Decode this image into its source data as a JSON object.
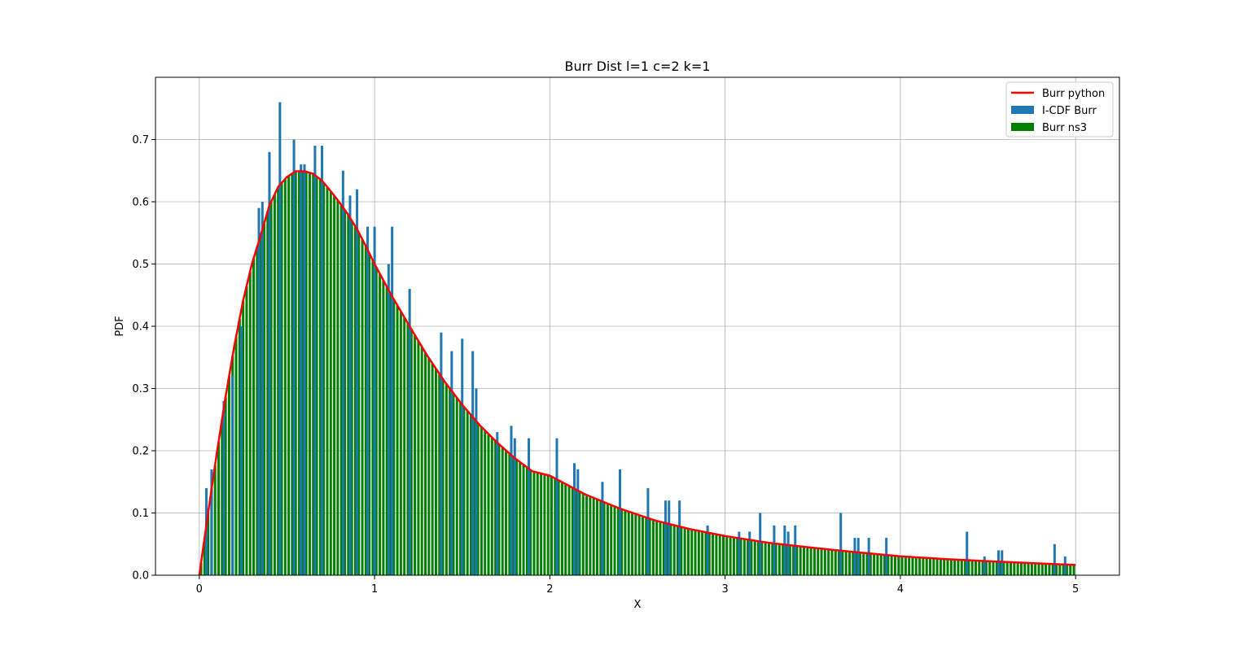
{
  "chart_data": {
    "type": "bar",
    "title": "Burr Dist l=1 c=2 k=1",
    "xlabel": "X",
    "ylabel": "PDF",
    "xlim": [
      -0.25,
      5.25
    ],
    "ylim": [
      0,
      0.8
    ],
    "xticks": [
      0,
      1,
      2,
      3,
      4,
      5
    ],
    "xtick_labels": [
      "0",
      "1",
      "2",
      "3",
      "4",
      "5"
    ],
    "yticks": [
      0.0,
      0.1,
      0.2,
      0.3,
      0.4,
      0.5,
      0.6,
      0.7
    ],
    "ytick_labels": [
      "0.0",
      "0.1",
      "0.2",
      "0.3",
      "0.4",
      "0.5",
      "0.6",
      "0.7"
    ],
    "grid": true,
    "legend_position": "top-right",
    "series": [
      {
        "name": "Burr python",
        "kind": "line",
        "color": "#ff0000",
        "x": [
          0,
          0.05,
          0.1,
          0.15,
          0.2,
          0.25,
          0.3,
          0.35,
          0.4,
          0.45,
          0.5,
          0.55,
          0.6,
          0.65,
          0.7,
          0.75,
          0.8,
          0.85,
          0.9,
          0.95,
          1.0,
          1.1,
          1.2,
          1.3,
          1.4,
          1.5,
          1.6,
          1.7,
          1.8,
          1.9,
          2.0,
          2.2,
          2.4,
          2.6,
          2.8,
          3.0,
          3.25,
          3.5,
          3.75,
          4.0,
          4.25,
          4.5,
          4.75,
          5.0
        ],
        "y": [
          0,
          0.1,
          0.196,
          0.287,
          0.369,
          0.441,
          0.5,
          0.546,
          0.594,
          0.624,
          0.64,
          0.649,
          0.649,
          0.645,
          0.634,
          0.617,
          0.599,
          0.579,
          0.556,
          0.529,
          0.5,
          0.448,
          0.4,
          0.353,
          0.311,
          0.274,
          0.241,
          0.213,
          0.188,
          0.167,
          0.16,
          0.13,
          0.107,
          0.088,
          0.074,
          0.063,
          0.052,
          0.044,
          0.037,
          0.0305,
          0.026,
          0.0225,
          0.0195,
          0.0165
        ]
      },
      {
        "name": "I-CDF Burr",
        "kind": "bar",
        "color": "#1f77b4",
        "x": [
          0.04,
          0.07,
          0.14,
          0.19,
          0.24,
          0.34,
          0.36,
          0.4,
          0.46,
          0.54,
          0.58,
          0.6,
          0.66,
          0.7,
          0.82,
          0.86,
          0.9,
          0.96,
          1.0,
          1.08,
          1.1,
          1.2,
          1.38,
          1.44,
          1.5,
          1.56,
          1.58,
          1.7,
          1.78,
          1.8,
          1.88,
          2.04,
          2.14,
          2.16,
          2.3,
          2.4,
          2.56,
          2.66,
          2.68,
          2.74,
          2.9,
          3.08,
          3.14,
          3.2,
          3.28,
          3.34,
          3.36,
          3.4,
          3.66,
          3.74,
          3.76,
          3.82,
          3.92,
          4.38,
          4.48,
          4.56,
          4.58,
          4.88,
          4.94
        ],
        "y": [
          0.14,
          0.17,
          0.28,
          0.32,
          0.4,
          0.59,
          0.6,
          0.68,
          0.76,
          0.7,
          0.66,
          0.66,
          0.69,
          0.69,
          0.65,
          0.61,
          0.62,
          0.56,
          0.56,
          0.5,
          0.56,
          0.46,
          0.39,
          0.36,
          0.38,
          0.36,
          0.3,
          0.23,
          0.24,
          0.22,
          0.22,
          0.22,
          0.18,
          0.17,
          0.15,
          0.17,
          0.14,
          0.12,
          0.12,
          0.12,
          0.08,
          0.07,
          0.07,
          0.1,
          0.08,
          0.08,
          0.07,
          0.08,
          0.1,
          0.06,
          0.06,
          0.06,
          0.06,
          0.07,
          0.03,
          0.04,
          0.04,
          0.05,
          0.03
        ]
      },
      {
        "name": "Burr ns3",
        "kind": "bar",
        "color": "#008000",
        "x_start": 0.0,
        "x_step": 0.02,
        "count": 250
      }
    ]
  }
}
